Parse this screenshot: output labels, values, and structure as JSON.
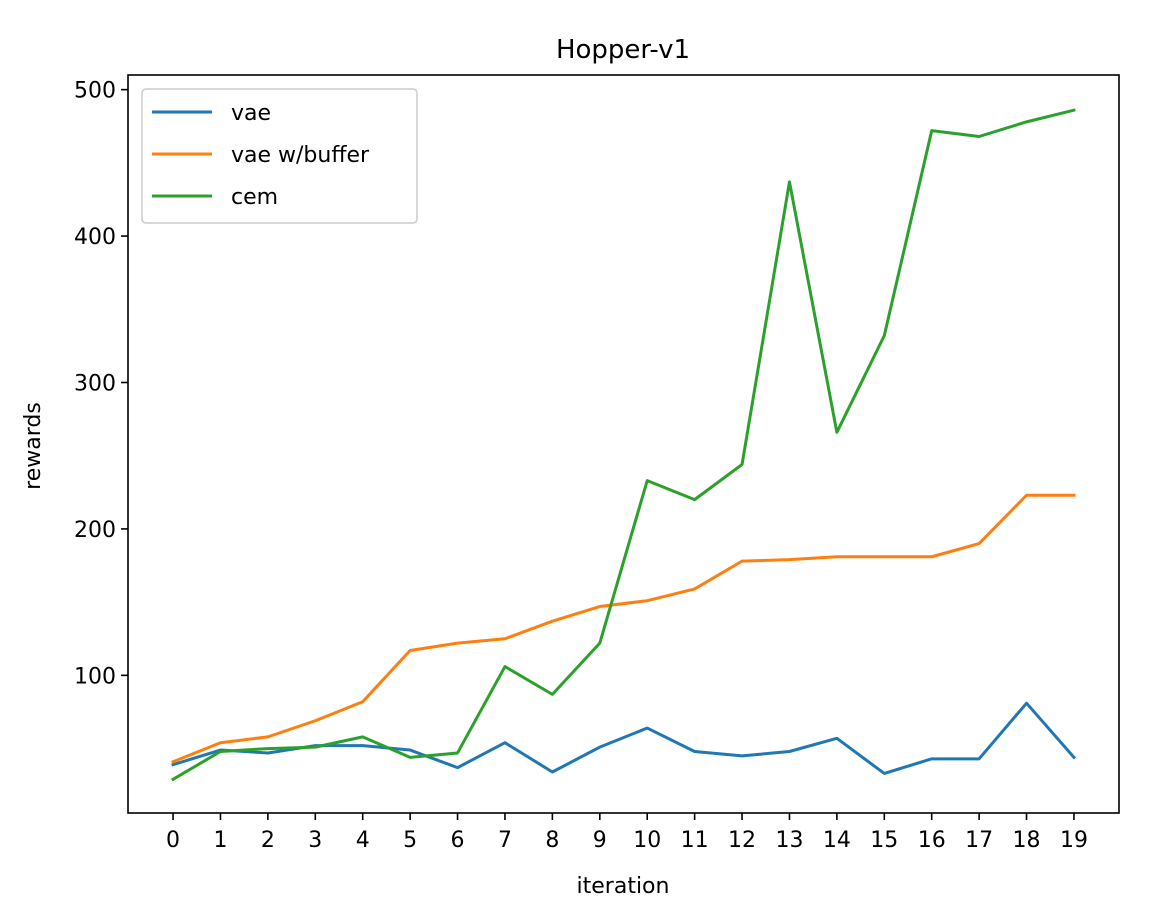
{
  "chart_data": {
    "type": "line",
    "title": "Hopper-v1",
    "xlabel": "iteration",
    "ylabel": "rewards",
    "x": [
      0,
      1,
      2,
      3,
      4,
      5,
      6,
      7,
      8,
      9,
      10,
      11,
      12,
      13,
      14,
      15,
      16,
      17,
      18,
      19
    ],
    "xticks": [
      "0",
      "1",
      "2",
      "3",
      "4",
      "5",
      "6",
      "7",
      "8",
      "9",
      "10",
      "11",
      "12",
      "13",
      "14",
      "15",
      "16",
      "17",
      "18",
      "19"
    ],
    "yticks": [
      100,
      200,
      300,
      400,
      500
    ],
    "ylim": [
      6,
      510
    ],
    "xlim": [
      -0.95,
      19.95
    ],
    "grid": false,
    "legend_position": "top-left",
    "series": [
      {
        "name": "vae",
        "color": "#1f77b4",
        "values": [
          39,
          49,
          47,
          52,
          52,
          49,
          37,
          54,
          34,
          51,
          64,
          48,
          45,
          48,
          57,
          33,
          43,
          43,
          81,
          44
        ]
      },
      {
        "name": "vae w/buffer",
        "color": "#ff7f0e",
        "values": [
          41,
          54,
          58,
          69,
          82,
          117,
          122,
          125,
          137,
          147,
          151,
          159,
          178,
          179,
          181,
          181,
          181,
          190,
          223,
          223
        ]
      },
      {
        "name": "cem",
        "color": "#2ca02c",
        "values": [
          29,
          48,
          50,
          51,
          58,
          44,
          47,
          106,
          87,
          122,
          233,
          220,
          244,
          437,
          266,
          332,
          472,
          468,
          478,
          486
        ]
      }
    ]
  }
}
